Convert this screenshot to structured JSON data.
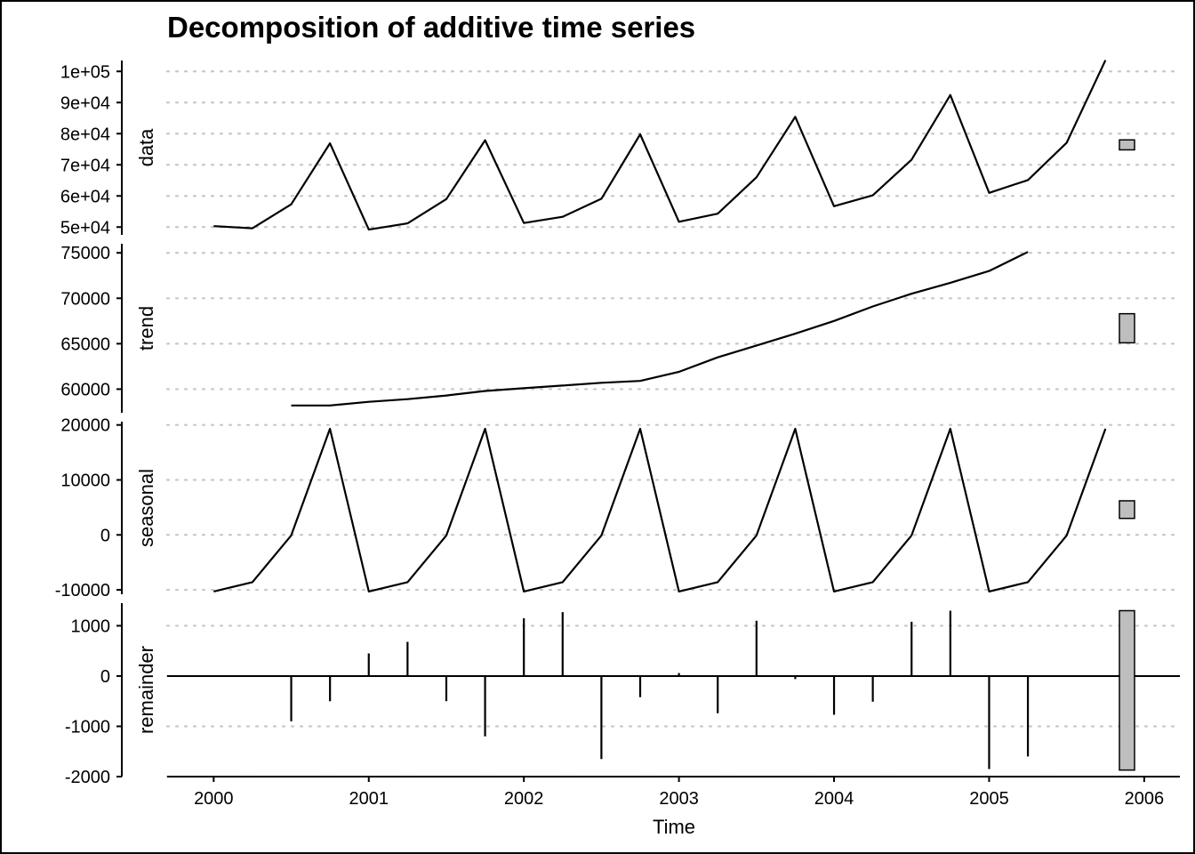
{
  "chart_data": {
    "type": "line",
    "title": "Decomposition of additive time series",
    "xlabel": "Time",
    "xlim": [
      1999.7,
      2006.23
    ],
    "x_ticks": [
      2000,
      2001,
      2002,
      2003,
      2004,
      2005,
      2006
    ],
    "x_tick_labels": [
      "2000",
      "2001",
      "2002",
      "2003",
      "2004",
      "2005",
      "2006"
    ],
    "grid": "dotted horizontal",
    "x": [
      2000,
      2000.25,
      2000.5,
      2000.75,
      2001,
      2001.25,
      2001.5,
      2001.75,
      2002,
      2002.25,
      2002.5,
      2002.75,
      2003,
      2003.25,
      2003.5,
      2003.75,
      2004,
      2004.25,
      2004.5,
      2004.75,
      2005,
      2005.25,
      2005.5,
      2005.75
    ],
    "panels": [
      {
        "name": "data",
        "ylabel": "data",
        "style": "line",
        "ylim": [
          47500,
          103500
        ],
        "y_ticks": [
          50000,
          60000,
          70000,
          80000,
          90000,
          100000
        ],
        "y_tick_labels": [
          "5e+04",
          "6e+04",
          "7e+04",
          "8e+04",
          "9e+04",
          "1e+05"
        ],
        "scale_bar_range": [
          74800,
          78000
        ],
        "values": [
          50300,
          49600,
          57300,
          76900,
          49200,
          51200,
          59000,
          77900,
          51300,
          53300,
          59100,
          79800,
          51700,
          54300,
          66000,
          85400,
          56700,
          60200,
          71600,
          92400,
          61000,
          65100,
          77100,
          103600
        ]
      },
      {
        "name": "trend",
        "ylabel": "trend",
        "style": "line",
        "ylim": [
          57400,
          76000
        ],
        "y_ticks": [
          60000,
          65000,
          70000,
          75000
        ],
        "y_tick_labels": [
          "60000",
          "65000",
          "70000",
          "75000"
        ],
        "scale_bar_range": [
          65100,
          68300
        ],
        "values": [
          null,
          null,
          58200,
          58200,
          58600,
          58900,
          59300,
          59800,
          60100,
          60400,
          60700,
          60900,
          61900,
          63500,
          64800,
          66100,
          67500,
          69100,
          70500,
          71700,
          73000,
          75100,
          null,
          null
        ]
      },
      {
        "name": "seasonal",
        "ylabel": "seasonal",
        "style": "line",
        "ylim": [
          -10800,
          20600
        ],
        "y_ticks": [
          -10000,
          0,
          10000,
          20000
        ],
        "y_tick_labels": [
          "-10000",
          "0",
          "10000",
          "20000"
        ],
        "scale_bar_range": [
          3000,
          6200
        ],
        "values": [
          -10300,
          -8600,
          -100,
          19300,
          -10300,
          -8600,
          -100,
          19300,
          -10300,
          -8600,
          -100,
          19300,
          -10300,
          -8600,
          -100,
          19300,
          -10300,
          -8600,
          -100,
          19300,
          -10300,
          -8600,
          -100,
          19300
        ]
      },
      {
        "name": "remainder",
        "ylabel": "remainder",
        "style": "bar",
        "ylim": [
          -2000,
          1450
        ],
        "y_ticks": [
          -2000,
          -1000,
          0,
          1000
        ],
        "y_tick_labels": [
          "-2000",
          "-1000",
          "0",
          "1000"
        ],
        "scale_bar_range": [
          -1870,
          1300
        ],
        "values": [
          null,
          null,
          -900,
          -500,
          450,
          680,
          -500,
          -1200,
          1150,
          1270,
          -1650,
          -420,
          60,
          -740,
          1100,
          -60,
          -770,
          -510,
          1080,
          1300,
          -1850,
          -1600,
          null,
          null
        ]
      }
    ]
  }
}
